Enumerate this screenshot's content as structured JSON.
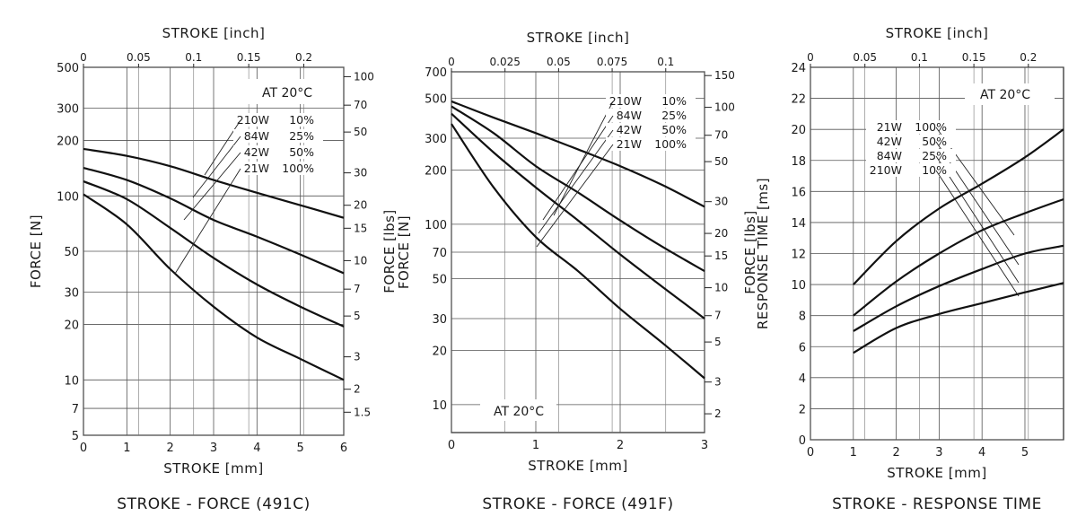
{
  "chart_data": [
    {
      "type": "line",
      "title": "STROKE - FORCE (491C)",
      "xlabel": "STROKE [mm]",
      "x2label": "STROKE [inch]",
      "ylabel": "FORCE [N]",
      "y2label": "FORCE [lbs]",
      "xlim": [
        0,
        6
      ],
      "ylim": [
        5,
        500
      ],
      "yscale": "log",
      "grid": true,
      "x_ticks": [
        "0",
        "1",
        "2",
        "3",
        "4",
        "5",
        "6"
      ],
      "x2_ticks": [
        "0",
        "0.05",
        "0.1",
        "0.15",
        "0.2"
      ],
      "y_ticks": [
        "5",
        "7",
        "10",
        "20",
        "30",
        "50",
        "100",
        "200",
        "300",
        "500"
      ],
      "y2_ticks": [
        "1.5",
        "2",
        "3",
        "5",
        "7",
        "10",
        "15",
        "20",
        "30",
        "50",
        "70",
        "100"
      ],
      "annotation": "AT 20°C",
      "legend": [
        {
          "power": "210W",
          "duty": "10%"
        },
        {
          "power": "84W",
          "duty": "25%"
        },
        {
          "power": "42W",
          "duty": "50%"
        },
        {
          "power": "21W",
          "duty": "100%"
        }
      ],
      "series": [
        {
          "x": [
            0,
            1,
            2,
            3,
            4,
            5,
            6
          ],
          "values": [
            180,
            165,
            145,
            122,
            104,
            89,
            76
          ]
        },
        {
          "x": [
            0,
            1,
            2,
            3,
            4,
            5,
            6
          ],
          "values": [
            142,
            122,
            97,
            74,
            60,
            48,
            38
          ]
        },
        {
          "x": [
            0,
            1,
            2,
            3,
            4,
            5,
            6
          ],
          "values": [
            120,
            96,
            67,
            46,
            33,
            25,
            19.5
          ]
        },
        {
          "x": [
            0,
            1,
            2,
            3,
            4,
            5,
            6
          ],
          "values": [
            102,
            70,
            40,
            25,
            17,
            13,
            10
          ]
        }
      ]
    },
    {
      "type": "line",
      "title": "STROKE - FORCE (491F)",
      "xlabel": "STROKE [mm]",
      "x2label": "STROKE [inch]",
      "ylabel": "FORCE [N]",
      "y2label": "FORCE [lbs]",
      "xlim": [
        0,
        3
      ],
      "ylim": [
        7,
        700
      ],
      "yscale": "log",
      "grid": true,
      "x_ticks": [
        "0",
        "1",
        "2",
        "3"
      ],
      "x2_ticks": [
        "0",
        "0.025",
        "0.05",
        "0.075",
        "0.1"
      ],
      "y_ticks": [
        "10",
        "20",
        "30",
        "50",
        "70",
        "100",
        "200",
        "300",
        "500",
        "700"
      ],
      "y2_ticks": [
        "2",
        "3",
        "5",
        "7",
        "10",
        "15",
        "20",
        "30",
        "50",
        "70",
        "100",
        "150"
      ],
      "annotation": "AT 20°C",
      "legend": [
        {
          "power": "210W",
          "duty": "10%"
        },
        {
          "power": "84W",
          "duty": "25%"
        },
        {
          "power": "42W",
          "duty": "50%"
        },
        {
          "power": "21W",
          "duty": "100%"
        }
      ],
      "series": [
        {
          "x": [
            0,
            0.5,
            1,
            1.5,
            2,
            2.5,
            3
          ],
          "values": [
            480,
            390,
            320,
            260,
            210,
            165,
            125
          ]
        },
        {
          "x": [
            0,
            0.5,
            1,
            1.5,
            2,
            2.5,
            3
          ],
          "values": [
            450,
            320,
            210,
            150,
            105,
            75,
            55
          ]
        },
        {
          "x": [
            0,
            0.5,
            1,
            1.5,
            2,
            2.5,
            3
          ],
          "values": [
            410,
            250,
            160,
            105,
            68,
            45,
            30
          ]
        },
        {
          "x": [
            0,
            0.5,
            1,
            1.5,
            2,
            2.5,
            3
          ],
          "values": [
            360,
            160,
            85,
            55,
            34,
            22,
            14
          ]
        }
      ]
    },
    {
      "type": "line",
      "title": "STROKE - RESPONSE TIME",
      "xlabel": "STROKE [mm]",
      "x2label": "STROKE [inch]",
      "ylabel": "RESPONSE TIME [ms]",
      "xlim": [
        0,
        5.9
      ],
      "ylim": [
        0,
        24
      ],
      "grid": true,
      "x_ticks": [
        "0",
        "1",
        "2",
        "3",
        "4",
        "5"
      ],
      "x2_ticks": [
        "0",
        "0.05",
        "0.1",
        "0.15",
        "0.2"
      ],
      "y_ticks": [
        "0",
        "2",
        "4",
        "6",
        "8",
        "10",
        "12",
        "14",
        "16",
        "18",
        "20",
        "22",
        "24"
      ],
      "annotation": "AT 20°C",
      "legend": [
        {
          "power": "21W",
          "duty": "100%"
        },
        {
          "power": "42W",
          "duty": "50%"
        },
        {
          "power": "84W",
          "duty": "25%"
        },
        {
          "power": "210W",
          "duty": "10%"
        }
      ],
      "series": [
        {
          "x": [
            1,
            2,
            3,
            4,
            5,
            5.9
          ],
          "values": [
            10,
            12.8,
            14.9,
            16.5,
            18.2,
            20
          ]
        },
        {
          "x": [
            1,
            2,
            3,
            4,
            5,
            5.9
          ],
          "values": [
            8,
            10.2,
            12,
            13.5,
            14.6,
            15.5
          ]
        },
        {
          "x": [
            1,
            2,
            3,
            4,
            5,
            5.9
          ],
          "values": [
            7,
            8.6,
            9.9,
            11,
            12,
            12.5
          ]
        },
        {
          "x": [
            1,
            2,
            3,
            4,
            5,
            5.9
          ],
          "values": [
            5.6,
            7.2,
            8.1,
            8.8,
            9.5,
            10.1
          ]
        }
      ]
    }
  ]
}
